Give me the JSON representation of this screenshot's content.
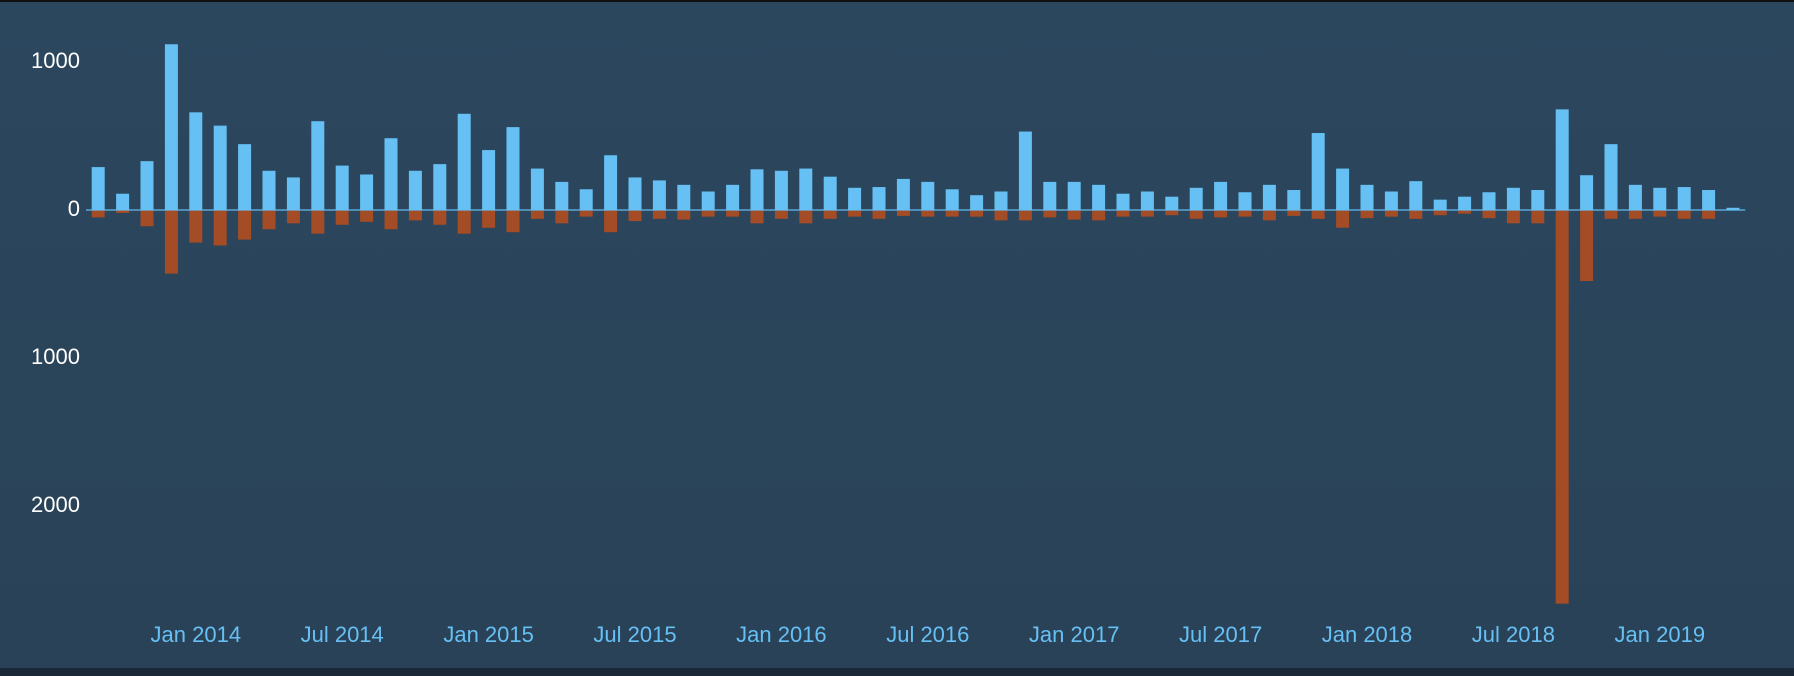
{
  "chart_data": {
    "type": "bar",
    "categories": [
      null,
      null,
      null,
      null,
      "Jan 2014",
      null,
      null,
      null,
      null,
      null,
      "Jul 2014",
      null,
      null,
      null,
      null,
      null,
      "Jan 2015",
      null,
      null,
      null,
      null,
      null,
      "Jul 2015",
      null,
      null,
      null,
      null,
      null,
      "Jan 2016",
      null,
      null,
      null,
      null,
      null,
      "Jul 2016",
      null,
      null,
      null,
      null,
      null,
      "Jan 2017",
      null,
      null,
      null,
      null,
      null,
      "Jul 2017",
      null,
      null,
      null,
      null,
      null,
      "Jan 2018",
      null,
      null,
      null,
      null,
      null,
      "Jul 2018",
      null,
      null,
      null,
      null,
      null,
      "Jan 2019",
      null,
      null,
      null
    ],
    "series": [
      {
        "color": "#66c0f4",
        "values": [
          290,
          110,
          330,
          1120,
          660,
          570,
          445,
          265,
          220,
          600,
          300,
          240,
          485,
          265,
          310,
          650,
          405,
          560,
          280,
          190,
          140,
          370,
          220,
          200,
          170,
          125,
          170,
          275,
          265,
          280,
          225,
          150,
          155,
          210,
          190,
          140,
          100,
          125,
          530,
          190,
          190,
          170,
          110,
          125,
          90,
          150,
          190,
          120,
          170,
          135,
          520,
          280,
          170,
          125,
          195,
          70,
          90,
          120,
          150,
          135,
          680,
          235,
          445,
          170,
          150,
          155,
          135,
          15
        ]
      },
      {
        "color": "#a34c25",
        "values": [
          -50,
          -20,
          -110,
          -430,
          -220,
          -240,
          -200,
          -130,
          -90,
          -160,
          -100,
          -80,
          -130,
          -70,
          -100,
          -160,
          -120,
          -150,
          -60,
          -90,
          -45,
          -150,
          -75,
          -60,
          -65,
          -45,
          -45,
          -90,
          -60,
          -90,
          -60,
          -45,
          -60,
          -40,
          -45,
          -45,
          -45,
          -70,
          -70,
          -50,
          -65,
          -70,
          -45,
          -45,
          -35,
          -60,
          -50,
          -45,
          -70,
          -40,
          -60,
          -120,
          -55,
          -45,
          -60,
          -35,
          -25,
          -55,
          -90,
          -90,
          -2660,
          -480,
          -60,
          -60,
          -45,
          -60,
          -60,
          0
        ]
      }
    ],
    "ylim": [
      -2750,
      1250
    ],
    "yticks": [
      1000,
      0,
      {
        "value": -1000,
        "label": "1000"
      },
      {
        "value": -2000,
        "label": "2000"
      }
    ]
  }
}
